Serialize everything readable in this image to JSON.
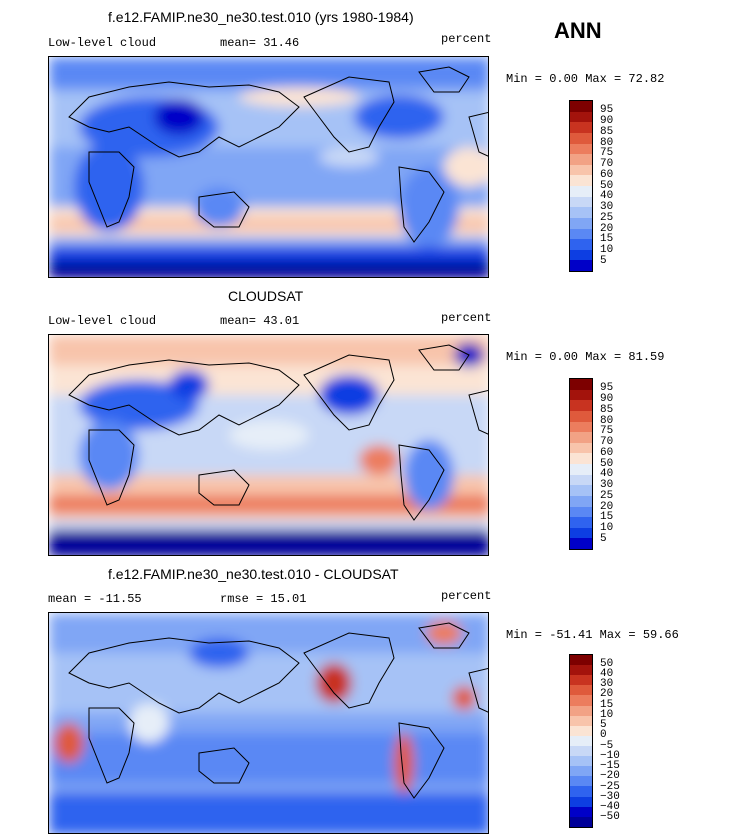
{
  "season": "ANN",
  "panels": [
    {
      "title": "f.e12.FAMIP.ne30_ne30.test.010 (yrs 1980-1984)",
      "left_label": "Low-level cloud",
      "mid_label": "mean=  31.46",
      "units": "percent",
      "minmax": "Min =   0.00 Max =  72.82",
      "colorbar": {
        "colors": [
          "#000099",
          "#0000c8",
          "#0d3ee2",
          "#2f63ef",
          "#5a88f4",
          "#80a6f5",
          "#a6c2f6",
          "#c8d8f6",
          "#e6eef8",
          "#fbe4d4",
          "#f8c4ab",
          "#f2a285",
          "#ec7d5e",
          "#df5a3c",
          "#c83320",
          "#a3130c",
          "#7d0000"
        ],
        "labels": [
          "95",
          "90",
          "85",
          "80",
          "75",
          "70",
          "60",
          "50",
          "40",
          "30",
          "25",
          "20",
          "15",
          "10",
          "5"
        ]
      }
    },
    {
      "title": "CLOUDSAT",
      "left_label": "Low-level cloud",
      "mid_label": "mean=  43.01",
      "units": "percent",
      "minmax": "Min =   0.00 Max =  81.59",
      "colorbar": {
        "colors": [
          "#000099",
          "#0000c8",
          "#0d3ee2",
          "#2f63ef",
          "#5a88f4",
          "#80a6f5",
          "#a6c2f6",
          "#c8d8f6",
          "#e6eef8",
          "#fbe4d4",
          "#f8c4ab",
          "#f2a285",
          "#ec7d5e",
          "#df5a3c",
          "#c83320",
          "#a3130c",
          "#7d0000"
        ],
        "labels": [
          "95",
          "90",
          "85",
          "80",
          "75",
          "70",
          "60",
          "50",
          "40",
          "30",
          "25",
          "20",
          "15",
          "10",
          "5"
        ]
      }
    },
    {
      "title": "f.e12.FAMIP.ne30_ne30.test.010 - CLOUDSAT",
      "left_label": "mean = -11.55",
      "mid_label": "rmse =  15.01",
      "units": "percent",
      "minmax": "Min = -51.41 Max =  59.66",
      "colorbar": {
        "colors": [
          "#000099",
          "#0000c8",
          "#0d3ee2",
          "#2f63ef",
          "#5a88f4",
          "#80a6f5",
          "#a6c2f6",
          "#c8d8f6",
          "#e6eef8",
          "#fbe4d4",
          "#f8c4ab",
          "#f2a285",
          "#ec7d5e",
          "#df5a3c",
          "#c83320",
          "#a3130c",
          "#7d0000"
        ],
        "labels": [
          "50",
          "40",
          "30",
          "20",
          "15",
          "10",
          "5",
          "0",
          "−5",
          "−10",
          "−15",
          "−20",
          "−25",
          "−30",
          "−40",
          "−50"
        ]
      }
    }
  ],
  "chart_data": [
    {
      "type": "heatmap",
      "title": "f.e12.FAMIP.ne30_ne30.test.010 (yrs 1980-1984)",
      "variable": "Low-level cloud",
      "units": "percent",
      "mean": 31.46,
      "min": 0.0,
      "max": 72.82,
      "contour_levels": [
        5,
        10,
        15,
        20,
        25,
        30,
        40,
        50,
        60,
        70,
        75,
        80,
        85,
        90,
        95
      ]
    },
    {
      "type": "heatmap",
      "title": "CLOUDSAT",
      "variable": "Low-level cloud",
      "units": "percent",
      "mean": 43.01,
      "min": 0.0,
      "max": 81.59,
      "contour_levels": [
        5,
        10,
        15,
        20,
        25,
        30,
        40,
        50,
        60,
        70,
        75,
        80,
        85,
        90,
        95
      ]
    },
    {
      "type": "heatmap",
      "title": "f.e12.FAMIP.ne30_ne30.test.010 - CLOUDSAT",
      "units": "percent",
      "mean": -11.55,
      "rmse": 15.01,
      "min": -51.41,
      "max": 59.66,
      "contour_levels": [
        -50,
        -40,
        -30,
        -25,
        -20,
        -15,
        -10,
        -5,
        0,
        5,
        10,
        15,
        20,
        30,
        40,
        50
      ]
    }
  ]
}
